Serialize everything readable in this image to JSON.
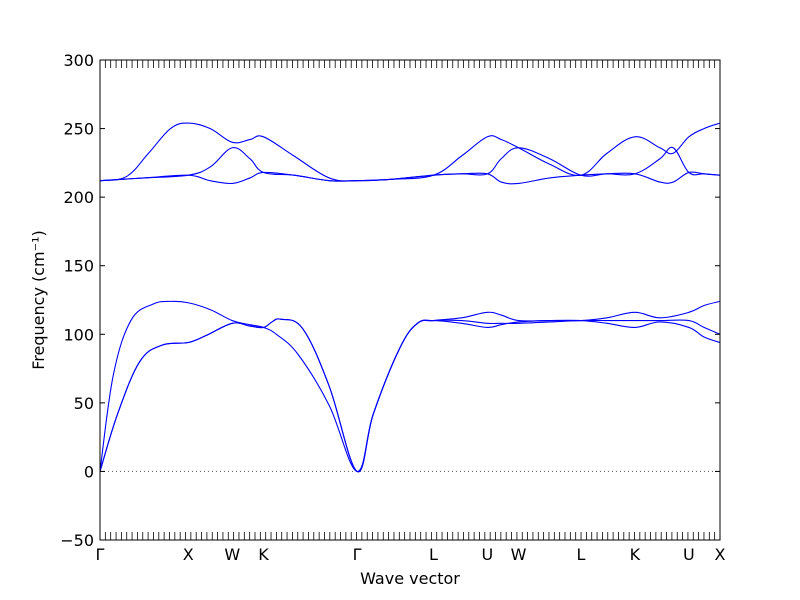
{
  "chart_data": {
    "type": "line",
    "title": "",
    "xlabel": "Wave vector",
    "ylabel": "Frequency (cm⁻¹)",
    "ylim": [
      -50,
      300
    ],
    "y_ticks": [
      -50,
      0,
      50,
      100,
      150,
      200,
      250,
      300
    ],
    "x_path": [
      {
        "label": "Γ",
        "x": 0.0
      },
      {
        "label": "X",
        "x": 1.0
      },
      {
        "label": "W",
        "x": 1.5
      },
      {
        "label": "K",
        "x": 1.854
      },
      {
        "label": "Γ",
        "x": 2.915
      },
      {
        "label": "L",
        "x": 3.781
      },
      {
        "label": "U",
        "x": 4.393
      },
      {
        "label": "W",
        "x": 4.747
      },
      {
        "label": "L",
        "x": 5.454
      },
      {
        "label": "K",
        "x": 6.066
      },
      {
        "label": "U",
        "x": 6.678
      },
      {
        "label": "X",
        "x": 7.031
      }
    ],
    "zero_line": {
      "y": 0,
      "style": "dotted"
    },
    "series": [
      {
        "values": [
          [
            0,
            0
          ],
          [
            0.2,
            42
          ],
          [
            0.45,
            80
          ],
          [
            0.7,
            92
          ],
          [
            1.0,
            94
          ],
          [
            1.2,
            99
          ],
          [
            1.5,
            108
          ],
          [
            1.7,
            106
          ],
          [
            1.854,
            105
          ],
          [
            1.95,
            109
          ],
          [
            2.05,
            111
          ],
          [
            2.3,
            104
          ],
          [
            2.6,
            62
          ],
          [
            2.915,
            0
          ],
          [
            3.1,
            42
          ],
          [
            3.4,
            90
          ],
          [
            3.6,
            108
          ],
          [
            3.781,
            110
          ],
          [
            4.1,
            108
          ],
          [
            4.393,
            105
          ],
          [
            4.55,
            107
          ],
          [
            4.747,
            109
          ],
          [
            5.1,
            110
          ],
          [
            5.454,
            110
          ],
          [
            5.75,
            108
          ],
          [
            6.066,
            105
          ],
          [
            6.35,
            109
          ],
          [
            6.678,
            105
          ],
          [
            6.85,
            98
          ],
          [
            7.031,
            94
          ]
        ]
      },
      {
        "values": [
          [
            0,
            0
          ],
          [
            0.2,
            42
          ],
          [
            0.45,
            80
          ],
          [
            0.7,
            92
          ],
          [
            1.0,
            94
          ],
          [
            1.2,
            99
          ],
          [
            1.5,
            108
          ],
          [
            1.7,
            106
          ],
          [
            1.854,
            105
          ],
          [
            1.95,
            109
          ],
          [
            2.05,
            111
          ],
          [
            2.3,
            104
          ],
          [
            2.6,
            62
          ],
          [
            2.915,
            0
          ],
          [
            3.1,
            42
          ],
          [
            3.4,
            90
          ],
          [
            3.6,
            108
          ],
          [
            3.781,
            110
          ],
          [
            4.1,
            110
          ],
          [
            4.393,
            108
          ],
          [
            4.55,
            108
          ],
          [
            4.747,
            108
          ],
          [
            5.1,
            109
          ],
          [
            5.454,
            110
          ],
          [
            5.75,
            110
          ],
          [
            6.066,
            110
          ],
          [
            6.35,
            110
          ],
          [
            6.678,
            110
          ],
          [
            6.85,
            105
          ],
          [
            7.031,
            100
          ]
        ]
      },
      {
        "values": [
          [
            0,
            0
          ],
          [
            0.15,
            70
          ],
          [
            0.35,
            110
          ],
          [
            0.6,
            122
          ],
          [
            0.8,
            124
          ],
          [
            1.0,
            123
          ],
          [
            1.25,
            118
          ],
          [
            1.5,
            110
          ],
          [
            1.7,
            107
          ],
          [
            1.854,
            105
          ],
          [
            2.0,
            100
          ],
          [
            2.25,
            85
          ],
          [
            2.6,
            48
          ],
          [
            2.915,
            0
          ],
          [
            3.1,
            42
          ],
          [
            3.4,
            90
          ],
          [
            3.6,
            108
          ],
          [
            3.781,
            110
          ],
          [
            4.1,
            112
          ],
          [
            4.393,
            116
          ],
          [
            4.55,
            114
          ],
          [
            4.747,
            110
          ],
          [
            5.1,
            110
          ],
          [
            5.454,
            110
          ],
          [
            5.75,
            112
          ],
          [
            6.066,
            116
          ],
          [
            6.35,
            112
          ],
          [
            6.678,
            116
          ],
          [
            6.85,
            121
          ],
          [
            7.031,
            124
          ]
        ]
      },
      {
        "values": [
          [
            0,
            212
          ],
          [
            0.5,
            214
          ],
          [
            1.0,
            216
          ],
          [
            1.25,
            212
          ],
          [
            1.5,
            210
          ],
          [
            1.7,
            214
          ],
          [
            1.854,
            218
          ],
          [
            2.2,
            216
          ],
          [
            2.6,
            212
          ],
          [
            2.915,
            212
          ],
          [
            3.3,
            213
          ],
          [
            3.781,
            216
          ],
          [
            4.1,
            217
          ],
          [
            4.393,
            217
          ],
          [
            4.55,
            211
          ],
          [
            4.747,
            210
          ],
          [
            5.1,
            214
          ],
          [
            5.454,
            216
          ],
          [
            5.75,
            217
          ],
          [
            6.066,
            217
          ],
          [
            6.35,
            211
          ],
          [
            6.5,
            211
          ],
          [
            6.678,
            218
          ],
          [
            6.85,
            217
          ],
          [
            7.031,
            216
          ]
        ]
      },
      {
        "values": [
          [
            0,
            212
          ],
          [
            0.5,
            214
          ],
          [
            1.0,
            216
          ],
          [
            1.25,
            222
          ],
          [
            1.5,
            236
          ],
          [
            1.7,
            228
          ],
          [
            1.854,
            218
          ],
          [
            2.2,
            216
          ],
          [
            2.6,
            212
          ],
          [
            2.915,
            212
          ],
          [
            3.3,
            213
          ],
          [
            3.781,
            216
          ],
          [
            4.1,
            217
          ],
          [
            4.393,
            217
          ],
          [
            4.55,
            228
          ],
          [
            4.747,
            236
          ],
          [
            5.1,
            228
          ],
          [
            5.454,
            216
          ],
          [
            5.75,
            217
          ],
          [
            6.066,
            217
          ],
          [
            6.35,
            228
          ],
          [
            6.5,
            236
          ],
          [
            6.678,
            218
          ],
          [
            6.85,
            217
          ],
          [
            7.031,
            216
          ]
        ]
      },
      {
        "values": [
          [
            0,
            212
          ],
          [
            0.3,
            215
          ],
          [
            0.55,
            232
          ],
          [
            0.8,
            250
          ],
          [
            1.0,
            254
          ],
          [
            1.25,
            250
          ],
          [
            1.5,
            240
          ],
          [
            1.7,
            242
          ],
          [
            1.854,
            244
          ],
          [
            2.2,
            230
          ],
          [
            2.6,
            214
          ],
          [
            2.915,
            212
          ],
          [
            3.3,
            213
          ],
          [
            3.781,
            216
          ],
          [
            4.1,
            230
          ],
          [
            4.393,
            244
          ],
          [
            4.55,
            242
          ],
          [
            4.747,
            236
          ],
          [
            5.1,
            224
          ],
          [
            5.454,
            216
          ],
          [
            5.75,
            232
          ],
          [
            6.066,
            244
          ],
          [
            6.35,
            236
          ],
          [
            6.5,
            232
          ],
          [
            6.678,
            244
          ],
          [
            6.85,
            250
          ],
          [
            7.031,
            254
          ]
        ]
      }
    ]
  }
}
